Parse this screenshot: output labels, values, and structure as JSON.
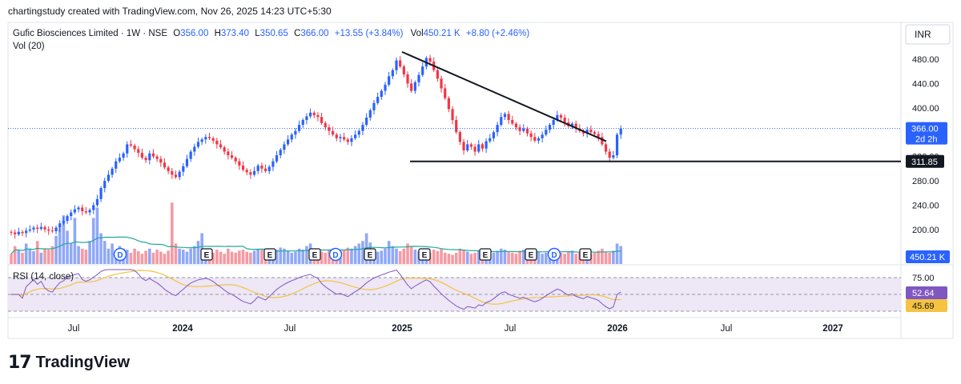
{
  "header": {
    "created_by": "chartingstudy created with TradingView.com, Nov 26, 2025 14:23 UTC+5:30"
  },
  "legend": {
    "symbol": "Gufic Biosciences Limited · 1W · NSE",
    "o_label": "O",
    "o_value": "356.00",
    "h_label": "H",
    "h_value": "373.40",
    "l_label": "L",
    "l_value": "350.65",
    "c_label": "C",
    "c_value": "366.00",
    "change": "+13.55 (+3.84%)",
    "vol_label": "Vol",
    "vol_value": "450.21 K",
    "vol_change": "+8.80 (+2.46%)",
    "vol_indicator": "Vol (20)",
    "rsi_indicator": "RSI (14, close)"
  },
  "colors": {
    "up": "#2962ff",
    "down": "#f23645",
    "vol_up": "#8fa8f8",
    "vol_down": "#f59aa3",
    "vol_ma": "#26a69a",
    "rsi": "#7e57c2",
    "rsi_ma": "#f5c242",
    "rsi_band": "#ede7f6",
    "current": "#2962ff"
  },
  "chart_data": {
    "type": "candlestick",
    "currency": "INR",
    "price_axis": {
      "ticks": [
        "480.00",
        "440.00",
        "400.00",
        "360.00",
        "320.00",
        "280.00",
        "240.00",
        "200.00"
      ],
      "ylim": [
        160,
        500
      ]
    },
    "time_axis": [
      "Jul",
      "2024",
      "Jul",
      "2025",
      "Jul",
      "2026",
      "Jul",
      "2027"
    ],
    "current_price": {
      "value": 366.0,
      "label": "366.00",
      "countdown": "2d 2h"
    },
    "support": {
      "value": 311.85,
      "label": "311.85"
    },
    "volume_label": "450.21 K",
    "trendline": {
      "from": [
        "2024-12-16",
        492
      ],
      "to": [
        "2026-01-05",
        345
      ]
    },
    "events": [
      "D",
      "E",
      "E",
      "E",
      "D",
      "E",
      "E",
      "E",
      "E",
      "D",
      "E"
    ],
    "closes": [
      195,
      192,
      196,
      194,
      198,
      200,
      203,
      201,
      204,
      200,
      198,
      197,
      203,
      210,
      214,
      222,
      228,
      233,
      236,
      230,
      228,
      232,
      240,
      250,
      268,
      280,
      290,
      300,
      312,
      318,
      325,
      340,
      338,
      332,
      326,
      318,
      314,
      325,
      320,
      316,
      310,
      302,
      296,
      290,
      286,
      295,
      304,
      316,
      328,
      336,
      344,
      348,
      352,
      350,
      346,
      340,
      335,
      328,
      322,
      318,
      312,
      305,
      298,
      294,
      290,
      296,
      305,
      300,
      296,
      303,
      312,
      322,
      331,
      340,
      348,
      356,
      362,
      372,
      380,
      386,
      392,
      388,
      385,
      375,
      368,
      362,
      356,
      350,
      352,
      348,
      344,
      350,
      356,
      362,
      372,
      384,
      396,
      408,
      418,
      428,
      438,
      452,
      462,
      478,
      468,
      455,
      440,
      428,
      442,
      454,
      468,
      482,
      476,
      462,
      448,
      432,
      416,
      398,
      380,
      360,
      344,
      330,
      340,
      336,
      328,
      340,
      333,
      345,
      350,
      360,
      372,
      385,
      390,
      380,
      374,
      368,
      362,
      366,
      358,
      352,
      346,
      350,
      356,
      364,
      372,
      380,
      388,
      384,
      376,
      370,
      374,
      366,
      362,
      358,
      364,
      360,
      357,
      352,
      340,
      328,
      318,
      322,
      356,
      366
    ],
    "volume": [
      20,
      35,
      28,
      22,
      40,
      30,
      25,
      45,
      22,
      30,
      28,
      35,
      55,
      70,
      95,
      65,
      40,
      90,
      35,
      30,
      28,
      45,
      90,
      110,
      60,
      45,
      30,
      40,
      25,
      35,
      30,
      28,
      22,
      30,
      25,
      20,
      26,
      30,
      22,
      28,
      24,
      20,
      26,
      120,
      40,
      30,
      28,
      24,
      30,
      35,
      45,
      60,
      30,
      26,
      22,
      28,
      24,
      20,
      30,
      24,
      22,
      26,
      28,
      24,
      22,
      26,
      30,
      28,
      24,
      22,
      20,
      28,
      32,
      30,
      26,
      22,
      24,
      30,
      28,
      35,
      40,
      30,
      26,
      24,
      22,
      28,
      30,
      22,
      24,
      28,
      32,
      30,
      35,
      40,
      45,
      60,
      42,
      30,
      24,
      26,
      30,
      45,
      35,
      30,
      25,
      30,
      40,
      35,
      28,
      25,
      30,
      20,
      22,
      28,
      25,
      30,
      22,
      20,
      18,
      22,
      30,
      28,
      24,
      20,
      22,
      26,
      30,
      24,
      20,
      22,
      26,
      30,
      28,
      24,
      22,
      20,
      26,
      28,
      22,
      20,
      22,
      24,
      20,
      22,
      24,
      26,
      30,
      22,
      20,
      24,
      26,
      20,
      22,
      26,
      24,
      20,
      22,
      26,
      30,
      24,
      22,
      26,
      40,
      35
    ],
    "rsi_axis": [
      "75.00",
      "45.69"
    ],
    "rsi_current": {
      "value": 52.64,
      "label": "52.64"
    },
    "rsi_ma_current": {
      "value": 45.69,
      "label": "45.69"
    }
  },
  "brand": {
    "logo": "17",
    "name": "TradingView"
  }
}
